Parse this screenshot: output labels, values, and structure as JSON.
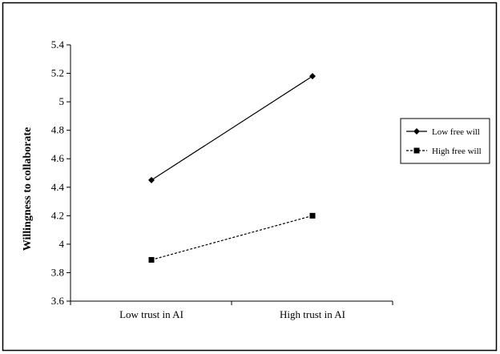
{
  "chart_data": {
    "type": "line",
    "title": "",
    "xlabel": "",
    "ylabel": "Willingness to collaborate",
    "categories": [
      "Low trust in AI",
      "High trust in AI"
    ],
    "ylim": [
      3.6,
      5.4
    ],
    "yticks": [
      3.6,
      3.8,
      4,
      4.2,
      4.4,
      4.6,
      4.8,
      5,
      5.2,
      5.4
    ],
    "ytick_labels": [
      "3.6",
      "3.8",
      "4",
      "4.2",
      "4.4",
      "4.6",
      "4.8",
      "5",
      "5.2",
      "5.4"
    ],
    "grid": false,
    "legend_position": "right",
    "series": [
      {
        "name": "Low free will",
        "values": [
          4.45,
          5.18
        ],
        "marker": "diamond",
        "line_style": "solid",
        "color": "#000000"
      },
      {
        "name": "High free will",
        "values": [
          3.89,
          4.2
        ],
        "marker": "square",
        "line_style": "dashed",
        "color": "#000000"
      }
    ]
  }
}
